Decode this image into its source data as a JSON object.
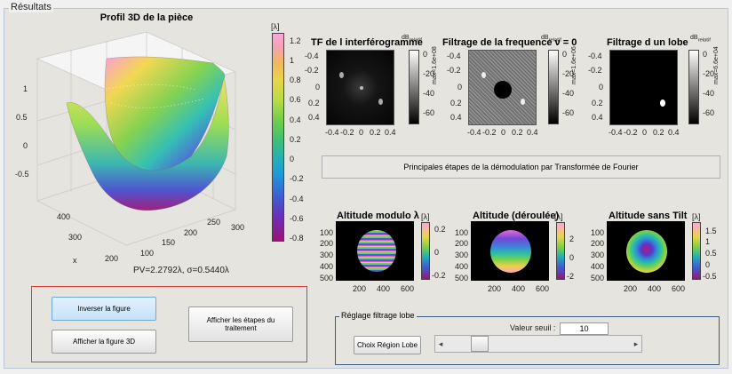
{
  "results_title": "Résultats",
  "profile": {
    "title": "Profil 3D de la pièce",
    "z_ticks": [
      "1",
      "0.5",
      "0",
      "-0.5"
    ],
    "y_ticks": [
      "400",
      "300",
      "200"
    ],
    "x_ticks": [
      "100",
      "150",
      "200",
      "250",
      "300"
    ],
    "x_label": "x",
    "stats": "PV=2.2792λ, σ=0.5440λ"
  },
  "main_colorbar": {
    "unit": "[λ]",
    "ticks": [
      "1.2",
      "1",
      "0.8",
      "0.6",
      "0.4",
      "0.2",
      "0",
      "-0.2",
      "-0.4",
      "-0.6",
      "-0.8"
    ]
  },
  "fft_panels": [
    {
      "title": "TF de l interférogramme",
      "unit": "dB",
      "unit_sub": "relatif",
      "max_text": "max=1.6e+08",
      "y_ticks": [
        "-0.4",
        "-0.2",
        "0",
        "0.2",
        "0.4"
      ],
      "x_ticks": [
        "-0.4",
        "-0.2",
        "0",
        "0.2",
        "0.4"
      ],
      "cbar_ticks": [
        "0",
        "-20",
        "-40",
        "-60"
      ]
    },
    {
      "title": "Filtrage de la frequence ν = 0",
      "unit": "dB",
      "unit_sub": "relatif",
      "max_text": "max=1.6e+06",
      "y_ticks": [
        "-0.4",
        "-0.2",
        "0",
        "0.2",
        "0.4"
      ],
      "x_ticks": [
        "-0.4",
        "-0.2",
        "0",
        "0.2",
        "0.4"
      ],
      "cbar_ticks": [
        "0",
        "-20",
        "-40",
        "-60"
      ]
    },
    {
      "title": "Filtrage d un lobe",
      "unit": "dB",
      "unit_sub": "relatif",
      "max_text": "max=6.6e+04",
      "y_ticks": [
        "-0.4",
        "-0.2",
        "0",
        "0.2",
        "0.4"
      ],
      "x_ticks": [
        "-0.4",
        "-0.2",
        "0",
        "0.2",
        "0.4"
      ],
      "cbar_ticks": [
        "0",
        "-20",
        "-40",
        "-60"
      ]
    }
  ],
  "demod_caption": "Principales étapes de la démodulation par Transformée de Fourier",
  "altitude_panels": [
    {
      "title": "Altitude modulo λ",
      "unit": "[λ]",
      "y_ticks": [
        "100",
        "200",
        "300",
        "400",
        "500"
      ],
      "x_ticks": [
        "200",
        "400",
        "600"
      ],
      "cbar_ticks": [
        "0.2",
        "0",
        "-0.2"
      ]
    },
    {
      "title": "Altitude (déroulée)",
      "unit": "[λ]",
      "y_ticks": [
        "100",
        "200",
        "300",
        "400",
        "500"
      ],
      "x_ticks": [
        "200",
        "400",
        "600"
      ],
      "cbar_ticks": [
        "2",
        "0",
        "-2"
      ]
    },
    {
      "title": "Altitude sans Tilt",
      "unit": "[λ]",
      "y_ticks": [
        "100",
        "200",
        "300",
        "400",
        "500"
      ],
      "x_ticks": [
        "200",
        "400",
        "600"
      ],
      "cbar_ticks": [
        "1.5",
        "1",
        "0.5",
        "0",
        "-0.5"
      ]
    }
  ],
  "buttons": {
    "invert": "Inverser la figure",
    "show3d": "Afficher la figure 3D",
    "steps": "Afficher les étapes du traitement",
    "region": "Choix Région Lobe"
  },
  "lobe_panel": {
    "title": "Réglage filtrage lobe",
    "threshold_label": "Valeur seuil :",
    "threshold_value": "10",
    "slider_fraction": 0.15
  }
}
